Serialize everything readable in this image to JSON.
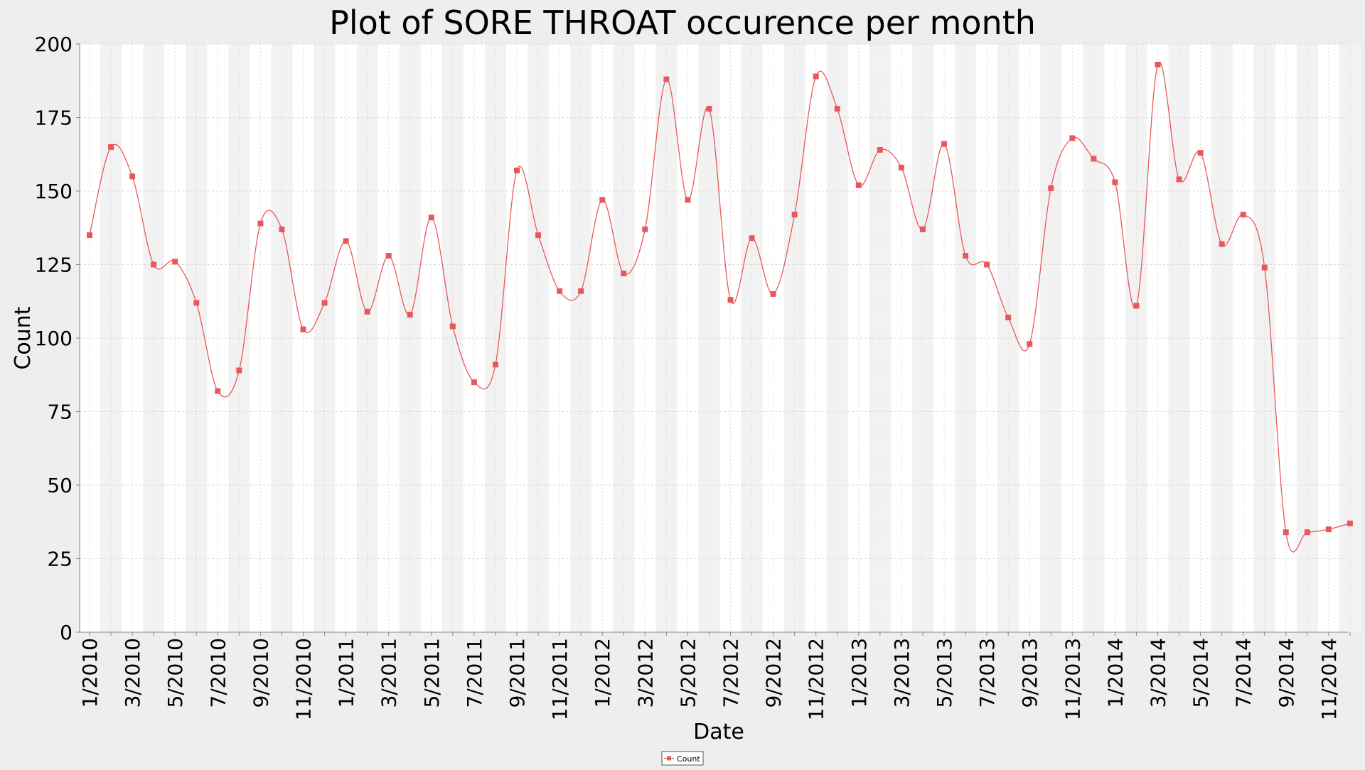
{
  "chart_data": {
    "type": "line",
    "title": "Plot of SORE THROAT occurence per month",
    "xlabel": "Date",
    "ylabel": "Count",
    "ylim": [
      0,
      200
    ],
    "yticks": [
      0,
      25,
      50,
      75,
      100,
      125,
      150,
      175,
      200
    ],
    "x_tick_labels": [
      "1/2010",
      "3/2010",
      "5/2010",
      "7/2010",
      "9/2010",
      "11/2010",
      "1/2011",
      "3/2011",
      "5/2011",
      "7/2011",
      "9/2011",
      "11/2011",
      "1/2012",
      "3/2012",
      "5/2012",
      "7/2012",
      "9/2012",
      "11/2012",
      "1/2013",
      "3/2013",
      "5/2013",
      "7/2013",
      "9/2013",
      "11/2013",
      "1/2014",
      "3/2014",
      "5/2014",
      "7/2014",
      "9/2014",
      "11/2014"
    ],
    "grid": true,
    "legend_position": "bottom-center",
    "series": [
      {
        "name": "Count",
        "color": "#e8585b",
        "x": [
          "1/2010",
          "2/2010",
          "3/2010",
          "4/2010",
          "5/2010",
          "6/2010",
          "7/2010",
          "8/2010",
          "9/2010",
          "10/2010",
          "11/2010",
          "12/2010",
          "1/2011",
          "2/2011",
          "3/2011",
          "4/2011",
          "5/2011",
          "6/2011",
          "7/2011",
          "8/2011",
          "9/2011",
          "10/2011",
          "11/2011",
          "12/2011",
          "1/2012",
          "2/2012",
          "3/2012",
          "4/2012",
          "5/2012",
          "6/2012",
          "7/2012",
          "8/2012",
          "9/2012",
          "10/2012",
          "11/2012",
          "12/2012",
          "1/2013",
          "2/2013",
          "3/2013",
          "4/2013",
          "5/2013",
          "6/2013",
          "7/2013",
          "8/2013",
          "9/2013",
          "10/2013",
          "11/2013",
          "12/2013",
          "1/2014",
          "2/2014",
          "3/2014",
          "4/2014",
          "5/2014",
          "6/2014",
          "7/2014",
          "8/2014",
          "9/2014",
          "10/2014",
          "11/2014",
          "12/2014"
        ],
        "values": [
          135,
          165,
          155,
          125,
          126,
          112,
          82,
          89,
          139,
          137,
          103,
          112,
          133,
          109,
          128,
          108,
          141,
          104,
          85,
          91,
          157,
          135,
          116,
          116,
          147,
          122,
          137,
          188,
          147,
          178,
          113,
          134,
          115,
          142,
          189,
          178,
          152,
          164,
          158,
          137,
          166,
          128,
          125,
          107,
          98,
          151,
          168,
          161,
          153,
          111,
          193,
          154,
          163,
          132,
          142,
          124,
          34,
          34,
          35,
          37
        ]
      }
    ]
  }
}
